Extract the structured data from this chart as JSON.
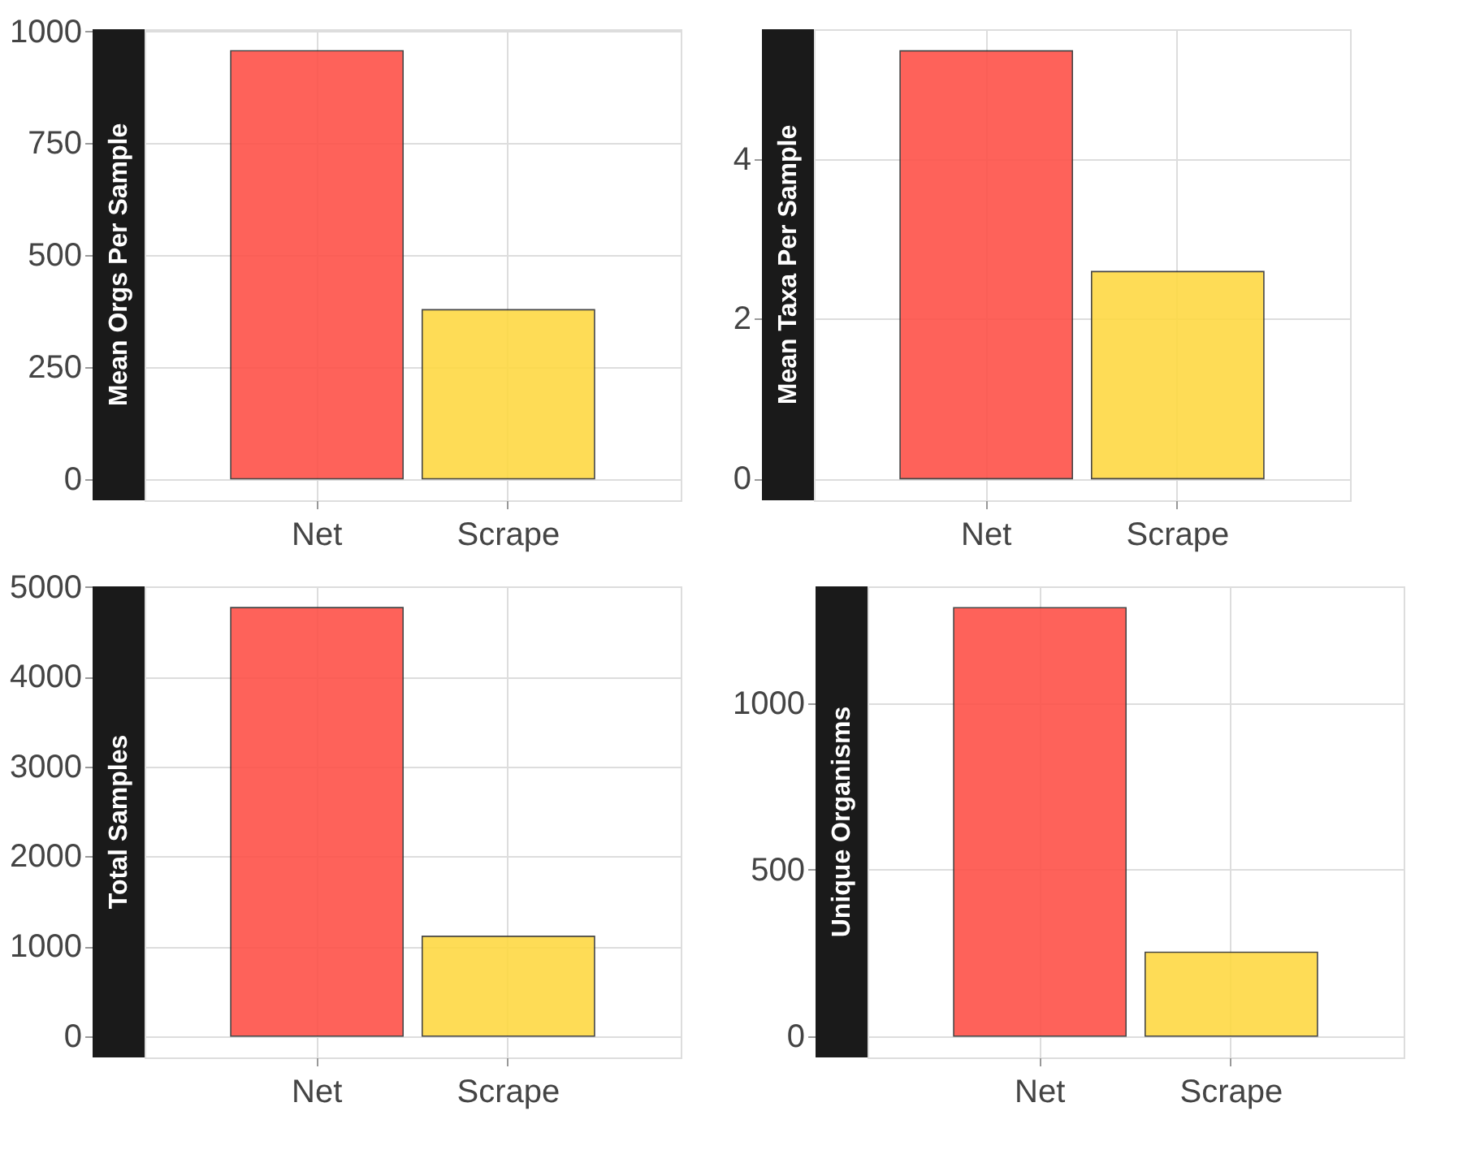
{
  "chart_data": [
    {
      "type": "bar",
      "ylabel": "Mean Orgs Per Sample",
      "categories": [
        "Net",
        "Scrape"
      ],
      "values": [
        957,
        378
      ],
      "colors": [
        "#fe5249",
        "#fed944"
      ],
      "ylim": [
        -48,
        1005
      ],
      "yticks": [
        0,
        250,
        500,
        750,
        1000
      ],
      "grid": true
    },
    {
      "type": "bar",
      "ylabel": "Mean Taxa Per Sample",
      "categories": [
        "Net",
        "Scrape"
      ],
      "values": [
        5.35,
        2.59
      ],
      "colors": [
        "#fe5249",
        "#fed944"
      ],
      "ylim": [
        -0.27,
        5.62
      ],
      "yticks": [
        0,
        2,
        4
      ],
      "grid": true
    },
    {
      "type": "bar",
      "ylabel": "Total Samples",
      "categories": [
        "Net",
        "Scrape"
      ],
      "values": [
        4770,
        1110
      ],
      "colors": [
        "#fe5249",
        "#fed944"
      ],
      "ylim": [
        -238,
        5006
      ],
      "yticks": [
        0,
        1000,
        2000,
        3000,
        4000,
        5000
      ],
      "grid": true
    },
    {
      "type": "bar",
      "ylabel": "Unique Organisms",
      "categories": [
        "Net",
        "Scrape"
      ],
      "values": [
        1287,
        252
      ],
      "colors": [
        "#fe5249",
        "#fed944"
      ],
      "ylim": [
        -64,
        1351
      ],
      "yticks": [
        0,
        500,
        1000
      ],
      "grid": true
    }
  ]
}
